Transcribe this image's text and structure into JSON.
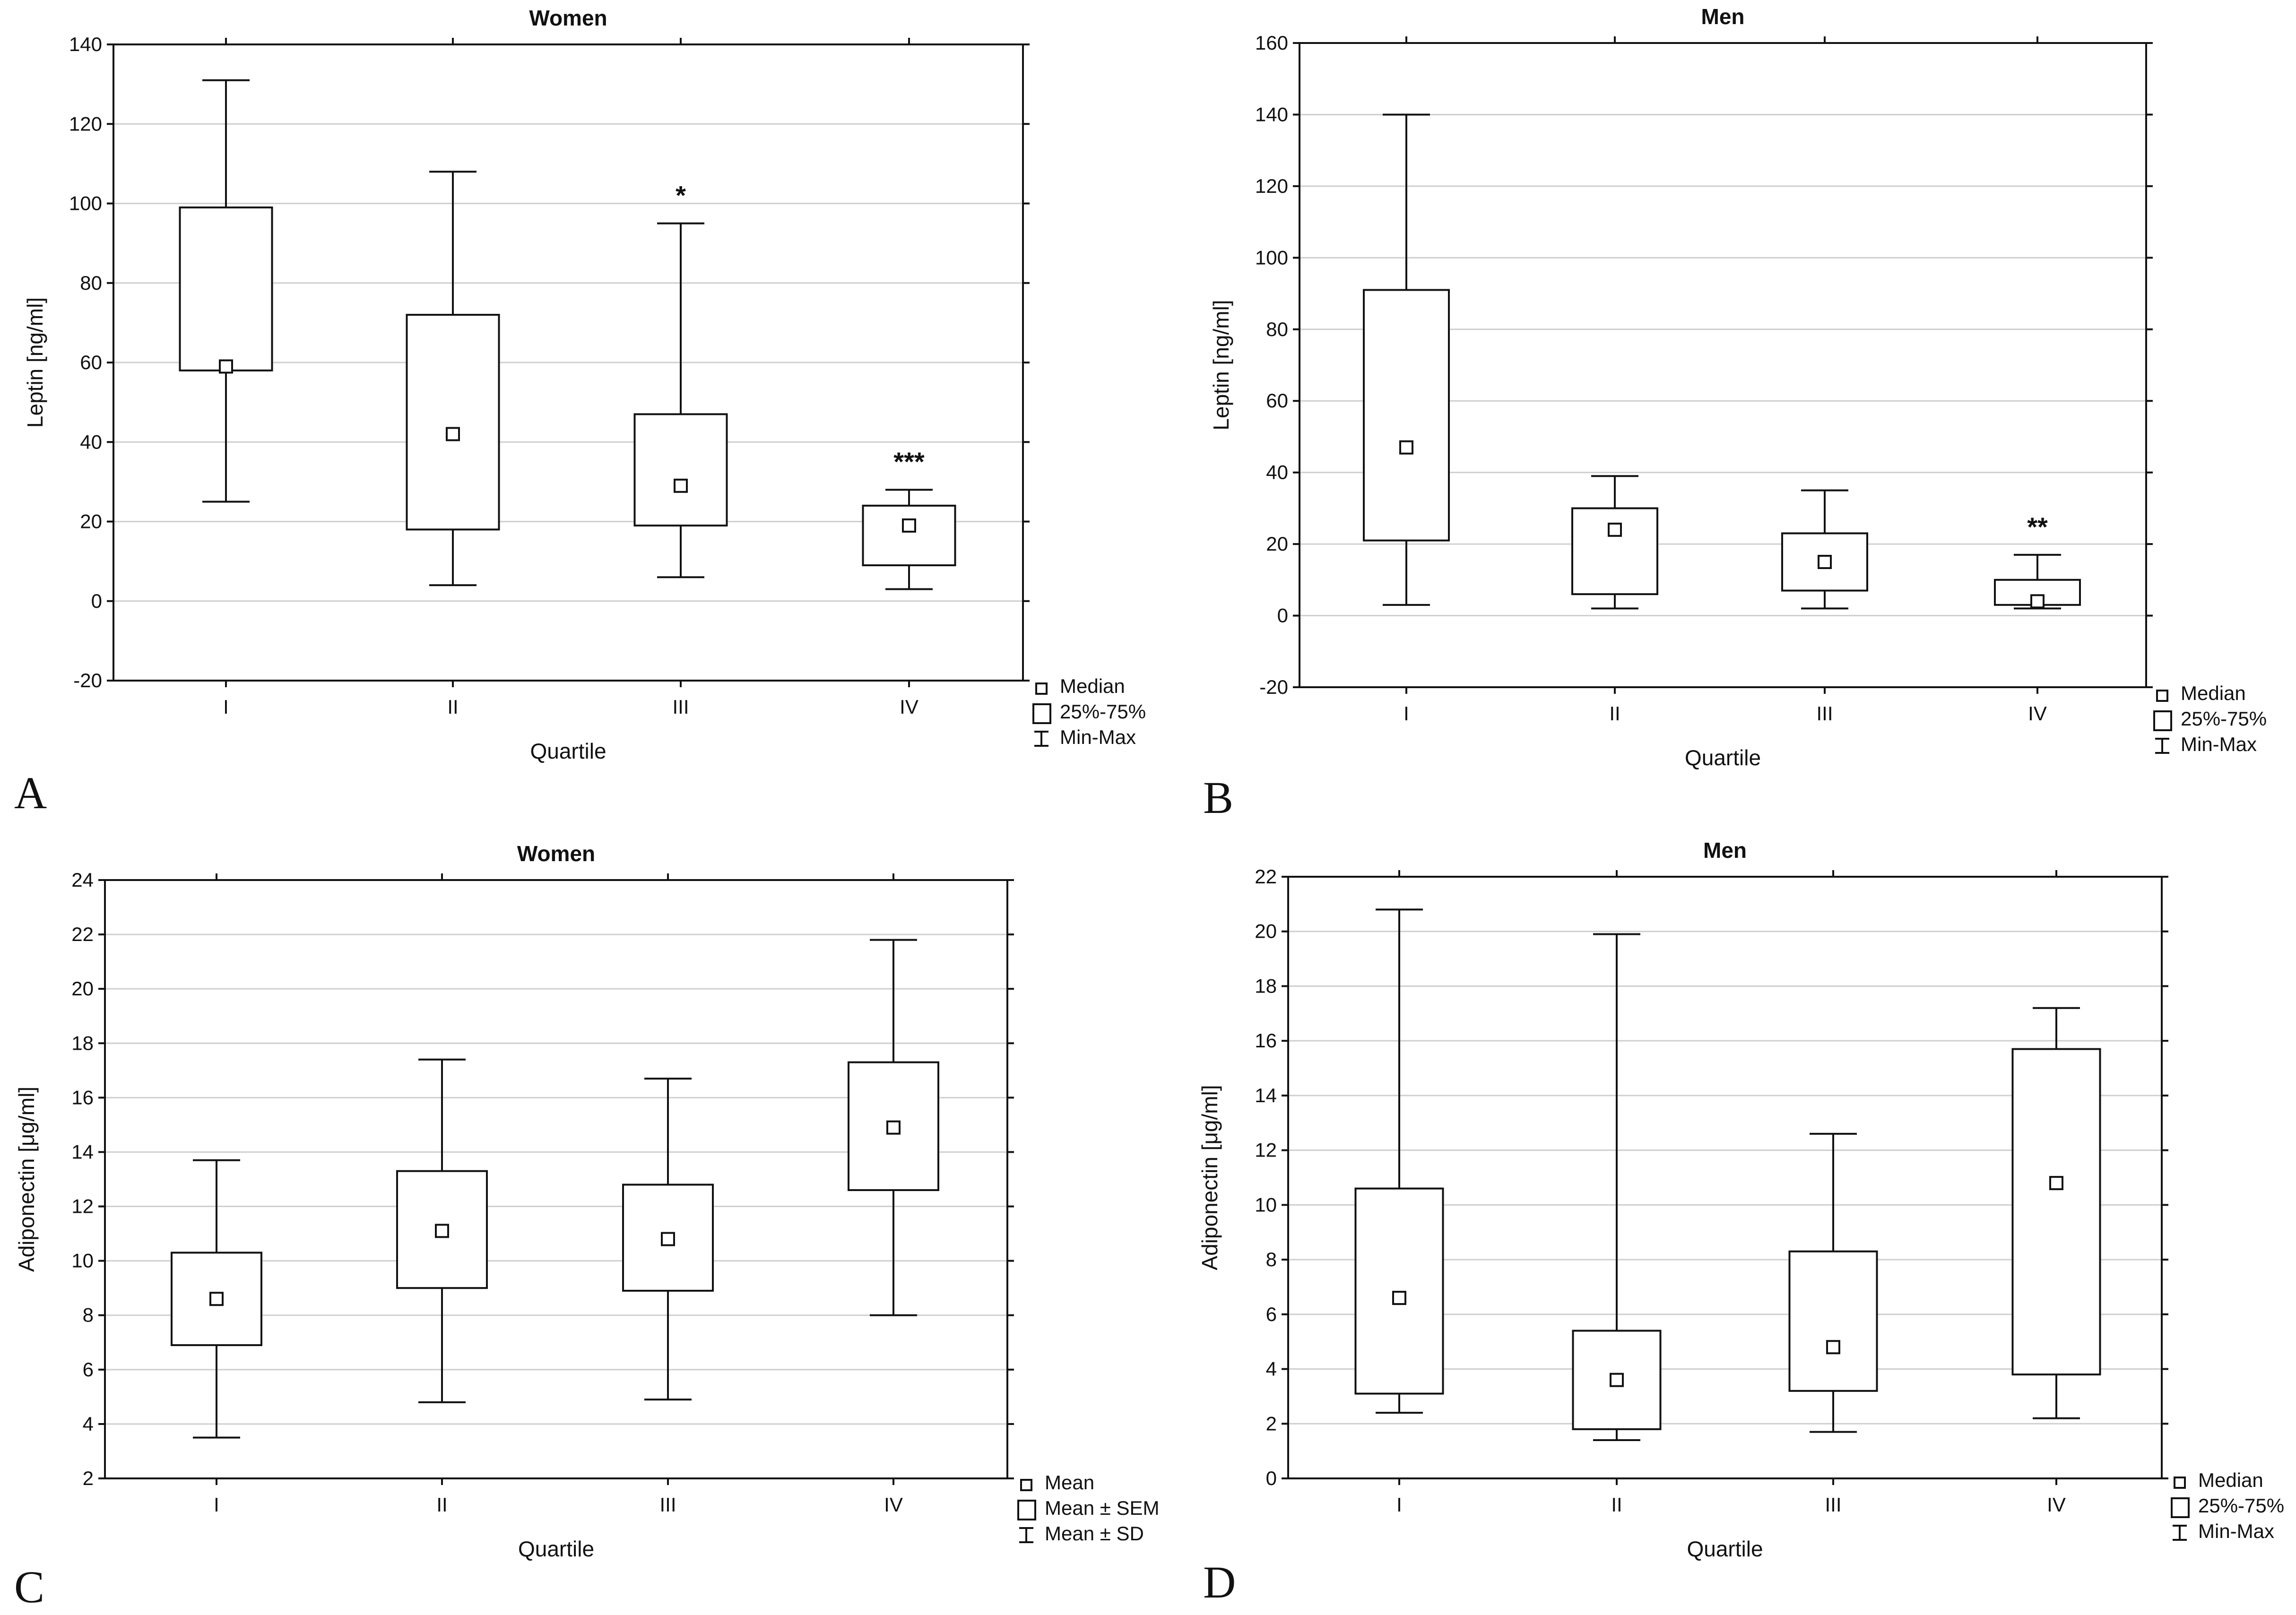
{
  "chart_data": [
    {
      "type": "box",
      "letter": "A",
      "title": "Women",
      "xlabel": "Quartile",
      "ylabel": "Leptin [ng/ml]",
      "ylim": [
        -20,
        140
      ],
      "yticks": [
        -20,
        0,
        20,
        40,
        60,
        80,
        100,
        120,
        140
      ],
      "categories": [
        "I",
        "II",
        "III",
        "IV"
      ],
      "boxes": [
        {
          "min": 25,
          "q1": 58,
          "center": 59,
          "q3": 99,
          "max": 131,
          "sig": ""
        },
        {
          "min": 4,
          "q1": 18,
          "center": 42,
          "q3": 72,
          "max": 108,
          "sig": ""
        },
        {
          "min": 6,
          "q1": 19,
          "center": 29,
          "q3": 47,
          "max": 95,
          "sig": "*"
        },
        {
          "min": 3,
          "q1": 9,
          "center": 19,
          "q3": 24,
          "max": 28,
          "sig": "***"
        }
      ],
      "legend": [
        "Median",
        "25%-75%",
        "Min-Max"
      ]
    },
    {
      "type": "box",
      "letter": "B",
      "title": "Men",
      "xlabel": "Quartile",
      "ylabel": "Leptin [ng/ml]",
      "ylim": [
        -20,
        160
      ],
      "yticks": [
        -20,
        0,
        20,
        40,
        60,
        80,
        100,
        120,
        140,
        160
      ],
      "categories": [
        "I",
        "II",
        "III",
        "IV"
      ],
      "boxes": [
        {
          "min": 3,
          "q1": 21,
          "center": 47,
          "q3": 91,
          "max": 140,
          "sig": ""
        },
        {
          "min": 2,
          "q1": 6,
          "center": 24,
          "q3": 30,
          "max": 39,
          "sig": ""
        },
        {
          "min": 2,
          "q1": 7,
          "center": 15,
          "q3": 23,
          "max": 35,
          "sig": ""
        },
        {
          "min": 2,
          "q1": 3,
          "center": 4,
          "q3": 10,
          "max": 17,
          "sig": "**"
        }
      ],
      "legend": [
        "Median",
        "25%-75%",
        "Min-Max"
      ]
    },
    {
      "type": "box",
      "letter": "C",
      "title": "Women",
      "xlabel": "Quartile",
      "ylabel": "Adiponectin [μg/ml]",
      "ylim": [
        2,
        24
      ],
      "yticks": [
        2,
        4,
        6,
        8,
        10,
        12,
        14,
        16,
        18,
        20,
        22,
        24
      ],
      "categories": [
        "I",
        "II",
        "III",
        "IV"
      ],
      "boxes": [
        {
          "min": 3.5,
          "q1": 6.9,
          "center": 8.6,
          "q3": 10.3,
          "max": 13.7,
          "sig": ""
        },
        {
          "min": 4.8,
          "q1": 9.0,
          "center": 11.1,
          "q3": 13.3,
          "max": 17.4,
          "sig": ""
        },
        {
          "min": 4.9,
          "q1": 8.9,
          "center": 10.8,
          "q3": 12.8,
          "max": 16.7,
          "sig": ""
        },
        {
          "min": 8.0,
          "q1": 12.6,
          "center": 14.9,
          "q3": 17.3,
          "max": 21.8,
          "sig": ""
        }
      ],
      "legend": [
        "Mean",
        "Mean ± SEM",
        "Mean ± SD"
      ]
    },
    {
      "type": "box",
      "letter": "D",
      "title": "Men",
      "xlabel": "Quartile",
      "ylabel": "Adiponectin [μg/ml]",
      "ylim": [
        0,
        22
      ],
      "yticks": [
        0,
        2,
        4,
        6,
        8,
        10,
        12,
        14,
        16,
        18,
        20,
        22
      ],
      "categories": [
        "I",
        "II",
        "III",
        "IV"
      ],
      "boxes": [
        {
          "min": 2.4,
          "q1": 3.1,
          "center": 6.6,
          "q3": 10.6,
          "max": 20.8,
          "sig": ""
        },
        {
          "min": 1.4,
          "q1": 1.8,
          "center": 3.6,
          "q3": 5.4,
          "max": 19.9,
          "sig": ""
        },
        {
          "min": 1.7,
          "q1": 3.2,
          "center": 4.8,
          "q3": 8.3,
          "max": 12.6,
          "sig": ""
        },
        {
          "min": 2.2,
          "q1": 3.8,
          "center": 10.8,
          "q3": 15.7,
          "max": 17.2,
          "sig": ""
        }
      ],
      "legend": [
        "Median",
        "25%-75%",
        "Min-Max"
      ]
    }
  ]
}
